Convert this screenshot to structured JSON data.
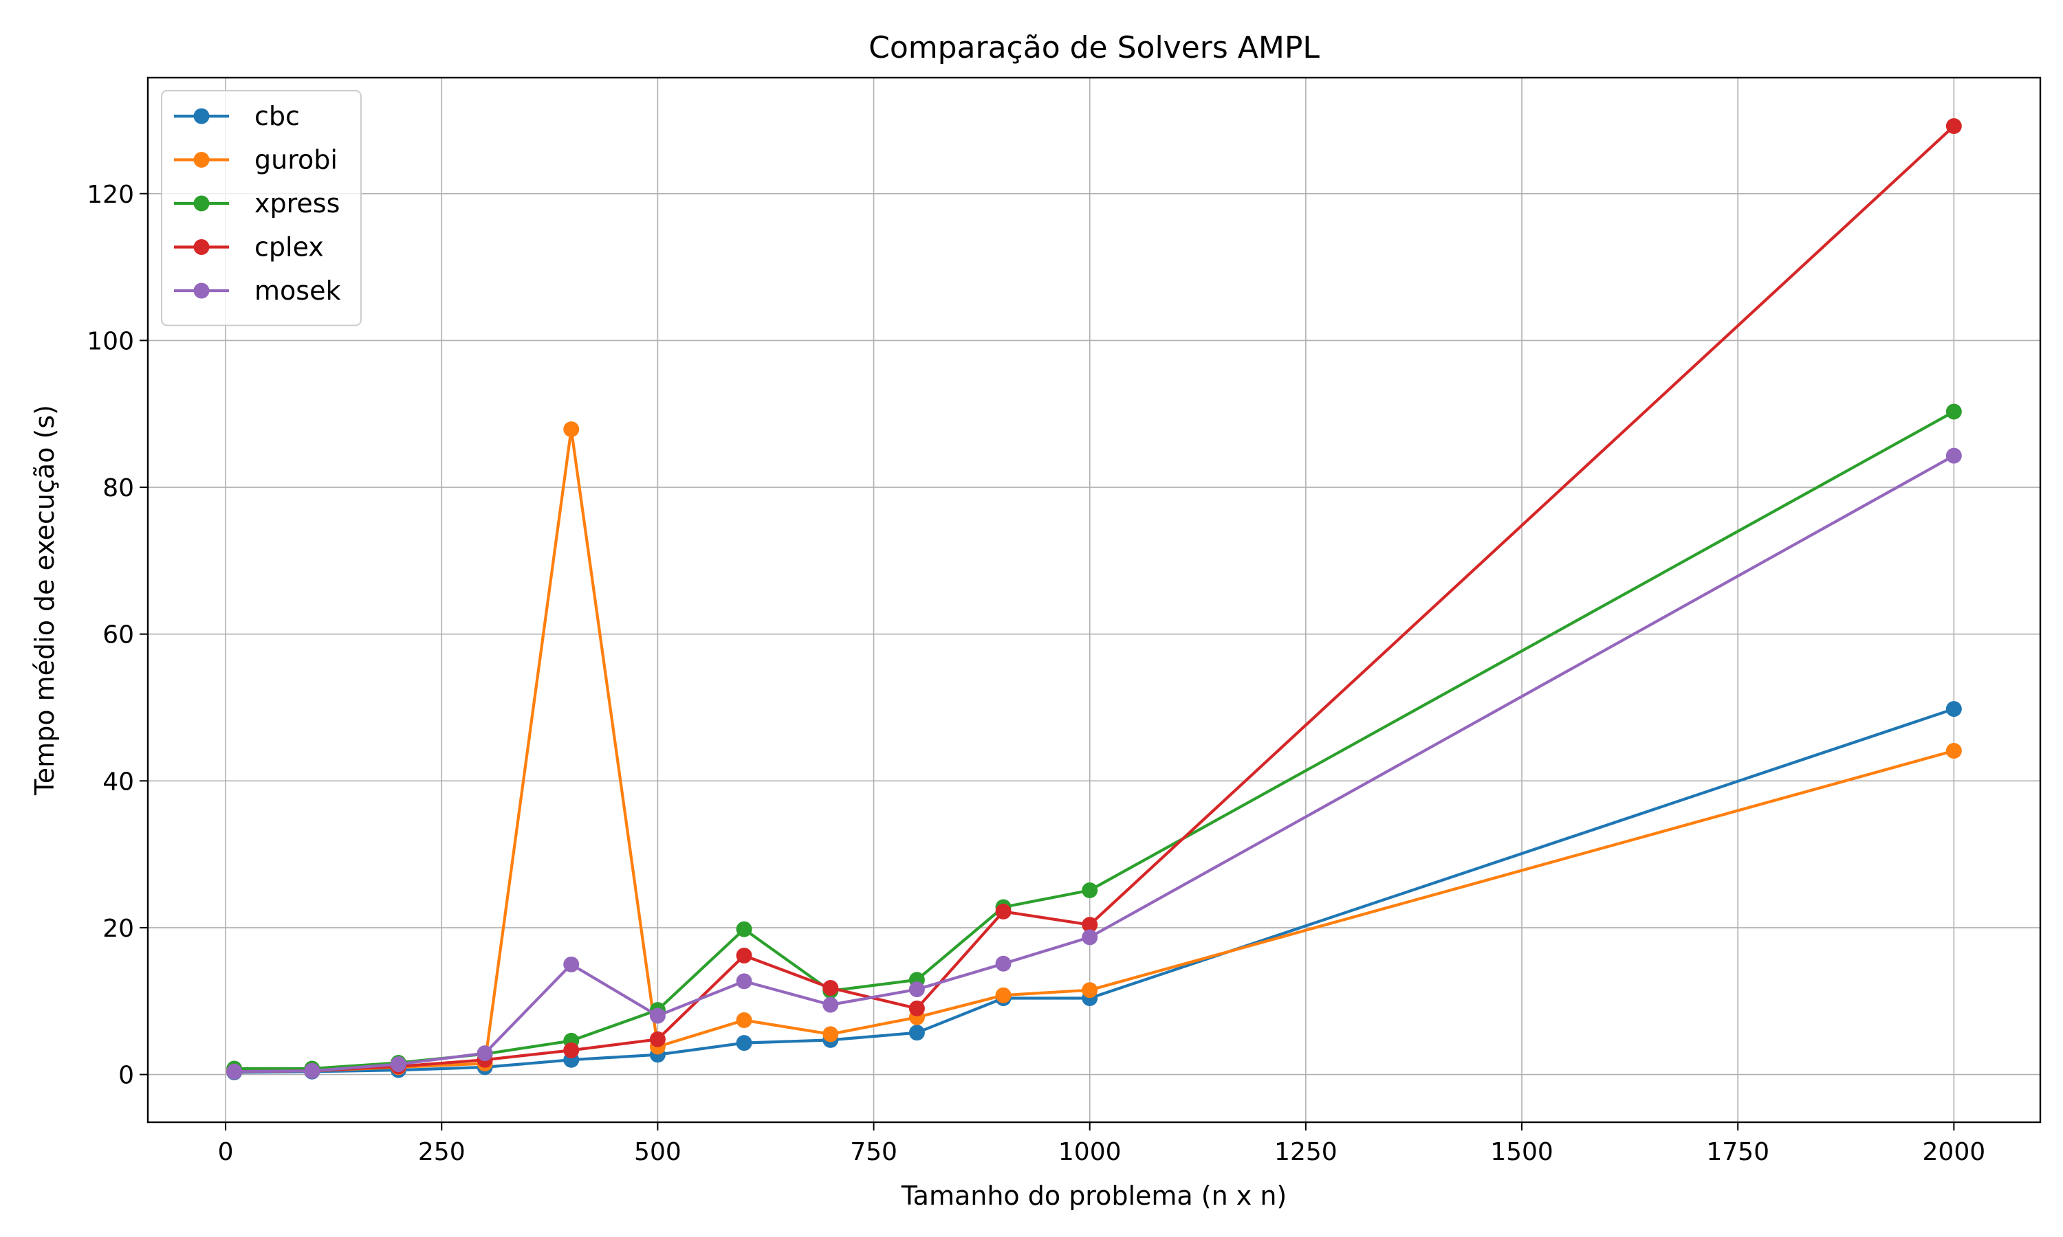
{
  "chart_data": {
    "type": "line",
    "title": "Comparação de Solvers AMPL",
    "xlabel": "Tamanho do problema (n x n)",
    "ylabel": "Tempo médio de execução (s)",
    "x": [
      10,
      100,
      200,
      300,
      400,
      500,
      600,
      700,
      800,
      900,
      1000,
      2000
    ],
    "xlim": [
      -90,
      2100
    ],
    "ylim": [
      -6.5,
      135.8
    ],
    "xticks": [
      0,
      250,
      500,
      750,
      1000,
      1250,
      1500,
      1750,
      2000
    ],
    "yticks": [
      0,
      20,
      40,
      60,
      80,
      100,
      120
    ],
    "grid": true,
    "legend_position": "top-left",
    "series": [
      {
        "name": "cbc",
        "color": "#1f77b4",
        "values": [
          0.3,
          0.4,
          0.6,
          1.0,
          2.0,
          2.7,
          4.3,
          4.7,
          5.7,
          10.4,
          10.4,
          49.8
        ]
      },
      {
        "name": "gurobi",
        "color": "#ff7f0e",
        "values": [
          0.4,
          0.5,
          1.0,
          1.5,
          87.9,
          3.8,
          7.4,
          5.5,
          7.8,
          10.8,
          11.5,
          44.1
        ]
      },
      {
        "name": "xpress",
        "color": "#2ca02c",
        "values": [
          0.8,
          0.8,
          1.6,
          2.8,
          4.6,
          8.8,
          19.8,
          11.4,
          12.9,
          22.8,
          25.1,
          90.3
        ]
      },
      {
        "name": "cplex",
        "color": "#d62728",
        "values": [
          0.4,
          0.5,
          1.1,
          2.0,
          3.3,
          4.8,
          16.2,
          11.8,
          9.0,
          22.2,
          20.4,
          129.2
        ]
      },
      {
        "name": "mosek",
        "color": "#9467bd",
        "values": [
          0.4,
          0.5,
          1.4,
          2.9,
          15.0,
          8.0,
          12.7,
          9.5,
          11.6,
          15.1,
          18.7,
          84.3
        ]
      }
    ]
  }
}
